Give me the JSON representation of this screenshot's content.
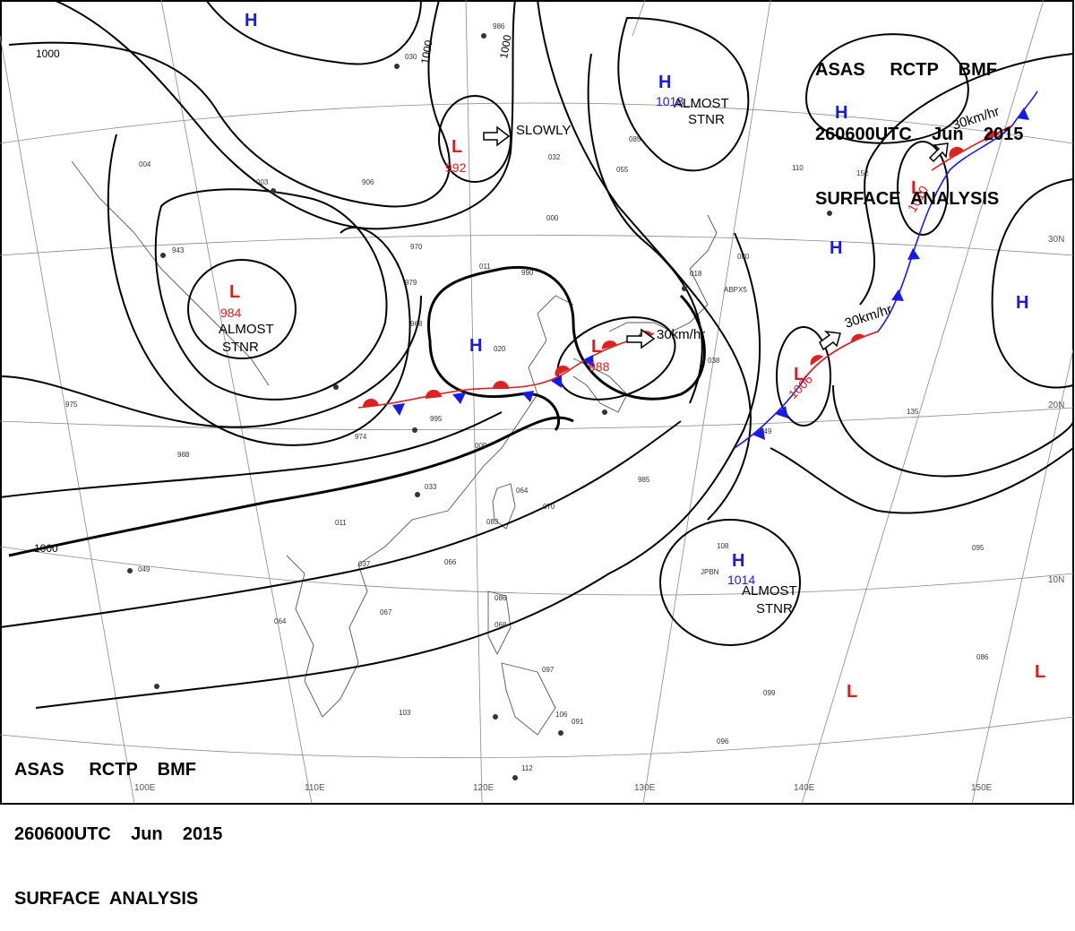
{
  "header_top_right": {
    "line1": "ASAS     RCTP    BMF",
    "line2": "260600UTC    Jun    2015",
    "line3": "SURFACE  ANALYSIS"
  },
  "header_bottom_left": {
    "line1": "ASAS     RCTP    BMF",
    "line2": "260600UTC    Jun    2015",
    "line3": "SURFACE  ANALYSIS"
  },
  "grid_labels": {
    "lon": [
      "100E",
      "110E",
      "120E",
      "130E",
      "140E",
      "150E"
    ],
    "lat": [
      "30N",
      "20N",
      "10N"
    ]
  },
  "isobar_labels": [
    "1000",
    "1000",
    "1000",
    "1000"
  ],
  "pressure_systems": [
    {
      "kind": "H",
      "value": ""
    },
    {
      "kind": "H",
      "value": "1018"
    },
    {
      "kind": "H",
      "value": ""
    },
    {
      "kind": "H",
      "value": ""
    },
    {
      "kind": "H",
      "value": ""
    },
    {
      "kind": "H",
      "value": ""
    },
    {
      "kind": "H",
      "value": "1014"
    },
    {
      "kind": "L",
      "value": "992"
    },
    {
      "kind": "L",
      "value": "984"
    },
    {
      "kind": "L",
      "value": "988"
    },
    {
      "kind": "L",
      "value": "1010"
    },
    {
      "kind": "L",
      "value": "1006"
    },
    {
      "kind": "L",
      "value": ""
    },
    {
      "kind": "L",
      "value": ""
    }
  ],
  "annotations": {
    "slowly": "SLOWLY",
    "almost_stnr_1a": "ALMOST",
    "almost_stnr_1b": "STNR",
    "almost_stnr_2a": "ALMOST",
    "almost_stnr_2b": "STNR",
    "almost_stnr_3a": "ALMOST",
    "almost_stnr_3b": "STNR",
    "speed_1": "30km/hr",
    "speed_2": "30km/hr",
    "speed_3": "30km/hr"
  },
  "station_values": [
    "986",
    "030",
    "003",
    "906",
    "970",
    "979",
    "968",
    "011",
    "990",
    "020",
    "000",
    "032",
    "085",
    "055",
    "110",
    "152",
    "080",
    "018",
    "038",
    "009",
    "033",
    "064",
    "070",
    "083",
    "066",
    "037",
    "011",
    "067",
    "064",
    "049",
    "086",
    "068",
    "097",
    "103",
    "106",
    "091",
    "096",
    "099",
    "086",
    "095",
    "108",
    "135",
    "112",
    "975",
    "988",
    "995",
    "974",
    "985",
    "949",
    "004",
    "943"
  ],
  "station_ids": [
    "JPBN",
    "ABPX5"
  ],
  "colors": {
    "high": "#1a1ae6",
    "low": "#e61919",
    "isobar": "#000000",
    "grid": "#888888",
    "coast": "#555555"
  }
}
